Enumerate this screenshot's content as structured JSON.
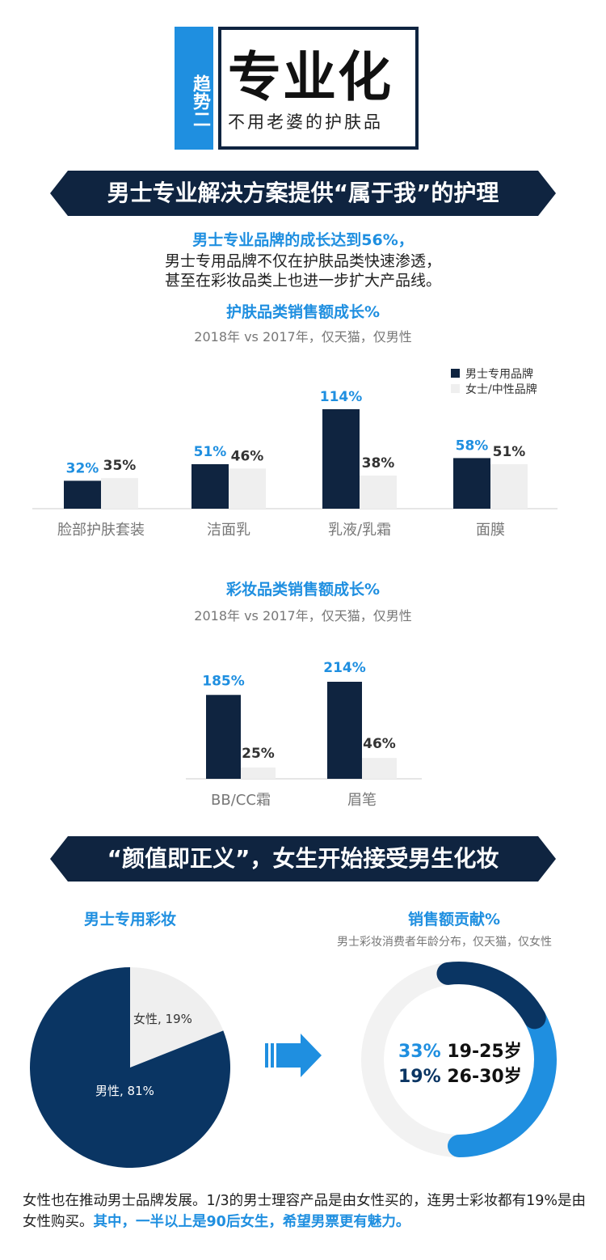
{
  "header": {
    "tag": "趋势二",
    "title": "专业化",
    "subtitle": "不用老婆的护肤品"
  },
  "section1": {
    "banner": "男士专业解决方案提供“属于我”的护理",
    "highlight": "男士专业品牌的成长达到56%，",
    "line2": "男士专用品牌不仅在护肤品类快速渗透，",
    "line3": "甚至在彩妆品类上也进一步扩大产品线。"
  },
  "chart_data": [
    {
      "type": "bar",
      "title": "护肤品类销售额成长%",
      "subtitle": "2018年 vs 2017年，仅天猫，仅男性",
      "categories": [
        "脸部护肤套装",
        "洁面乳",
        "乳液/乳霜",
        "面膜"
      ],
      "series": [
        {
          "name": "男士专用品牌",
          "values": [
            32,
            51,
            114,
            58
          ],
          "labels": [
            "32%",
            "51%",
            "114%",
            "58%"
          ]
        },
        {
          "name": "女士/中性品牌",
          "values": [
            35,
            46,
            38,
            51
          ],
          "labels": [
            "35%",
            "46%",
            "38%",
            "51%"
          ]
        }
      ],
      "legend": "top-right",
      "ylim": [
        0,
        114
      ]
    },
    {
      "type": "bar",
      "title": "彩妆品类销售额成长%",
      "subtitle": "2018年 vs 2017年，仅天猫，仅男性",
      "categories": [
        "BB/CC霜",
        "眉笔"
      ],
      "series": [
        {
          "name": "男士专用品牌",
          "values": [
            185,
            214
          ],
          "labels": [
            "185%",
            "214%"
          ]
        },
        {
          "name": "女士/中性品牌",
          "values": [
            25,
            46
          ],
          "labels": [
            "25%",
            "46%"
          ]
        }
      ],
      "ylim": [
        0,
        214
      ]
    },
    {
      "type": "pie",
      "title": "男士专用彩妆",
      "slices": [
        {
          "label": "女性, 19%",
          "value": 19
        },
        {
          "label": "男性, 81%",
          "value": 81
        }
      ]
    },
    {
      "type": "pie",
      "title": "销售额贡献%",
      "subtitle": "男士彩妆消费者年龄分布，仅天猫，仅女性",
      "slices": [
        {
          "value": 33,
          "pct": "33%",
          "label": "19-25岁"
        },
        {
          "value": 19,
          "pct": "19%",
          "label": "26-30岁"
        },
        {
          "value": 48
        }
      ]
    }
  ],
  "section2": {
    "banner": "“颜值即正义”，女生开始接受男生化妆"
  },
  "footer": {
    "text_part1": "女性也在推动男士品牌发展。1/3的男士理容产品是由女性买的，连男士彩妆都有19%是由女性购买。",
    "text_part2": "其中，一半以上是90后女生，希望男票更有魅力。"
  },
  "colors": {
    "navy": "#0f2440",
    "blue": "#1f8fe0",
    "light": "#efefef",
    "pie_dark": "#0a3563"
  }
}
